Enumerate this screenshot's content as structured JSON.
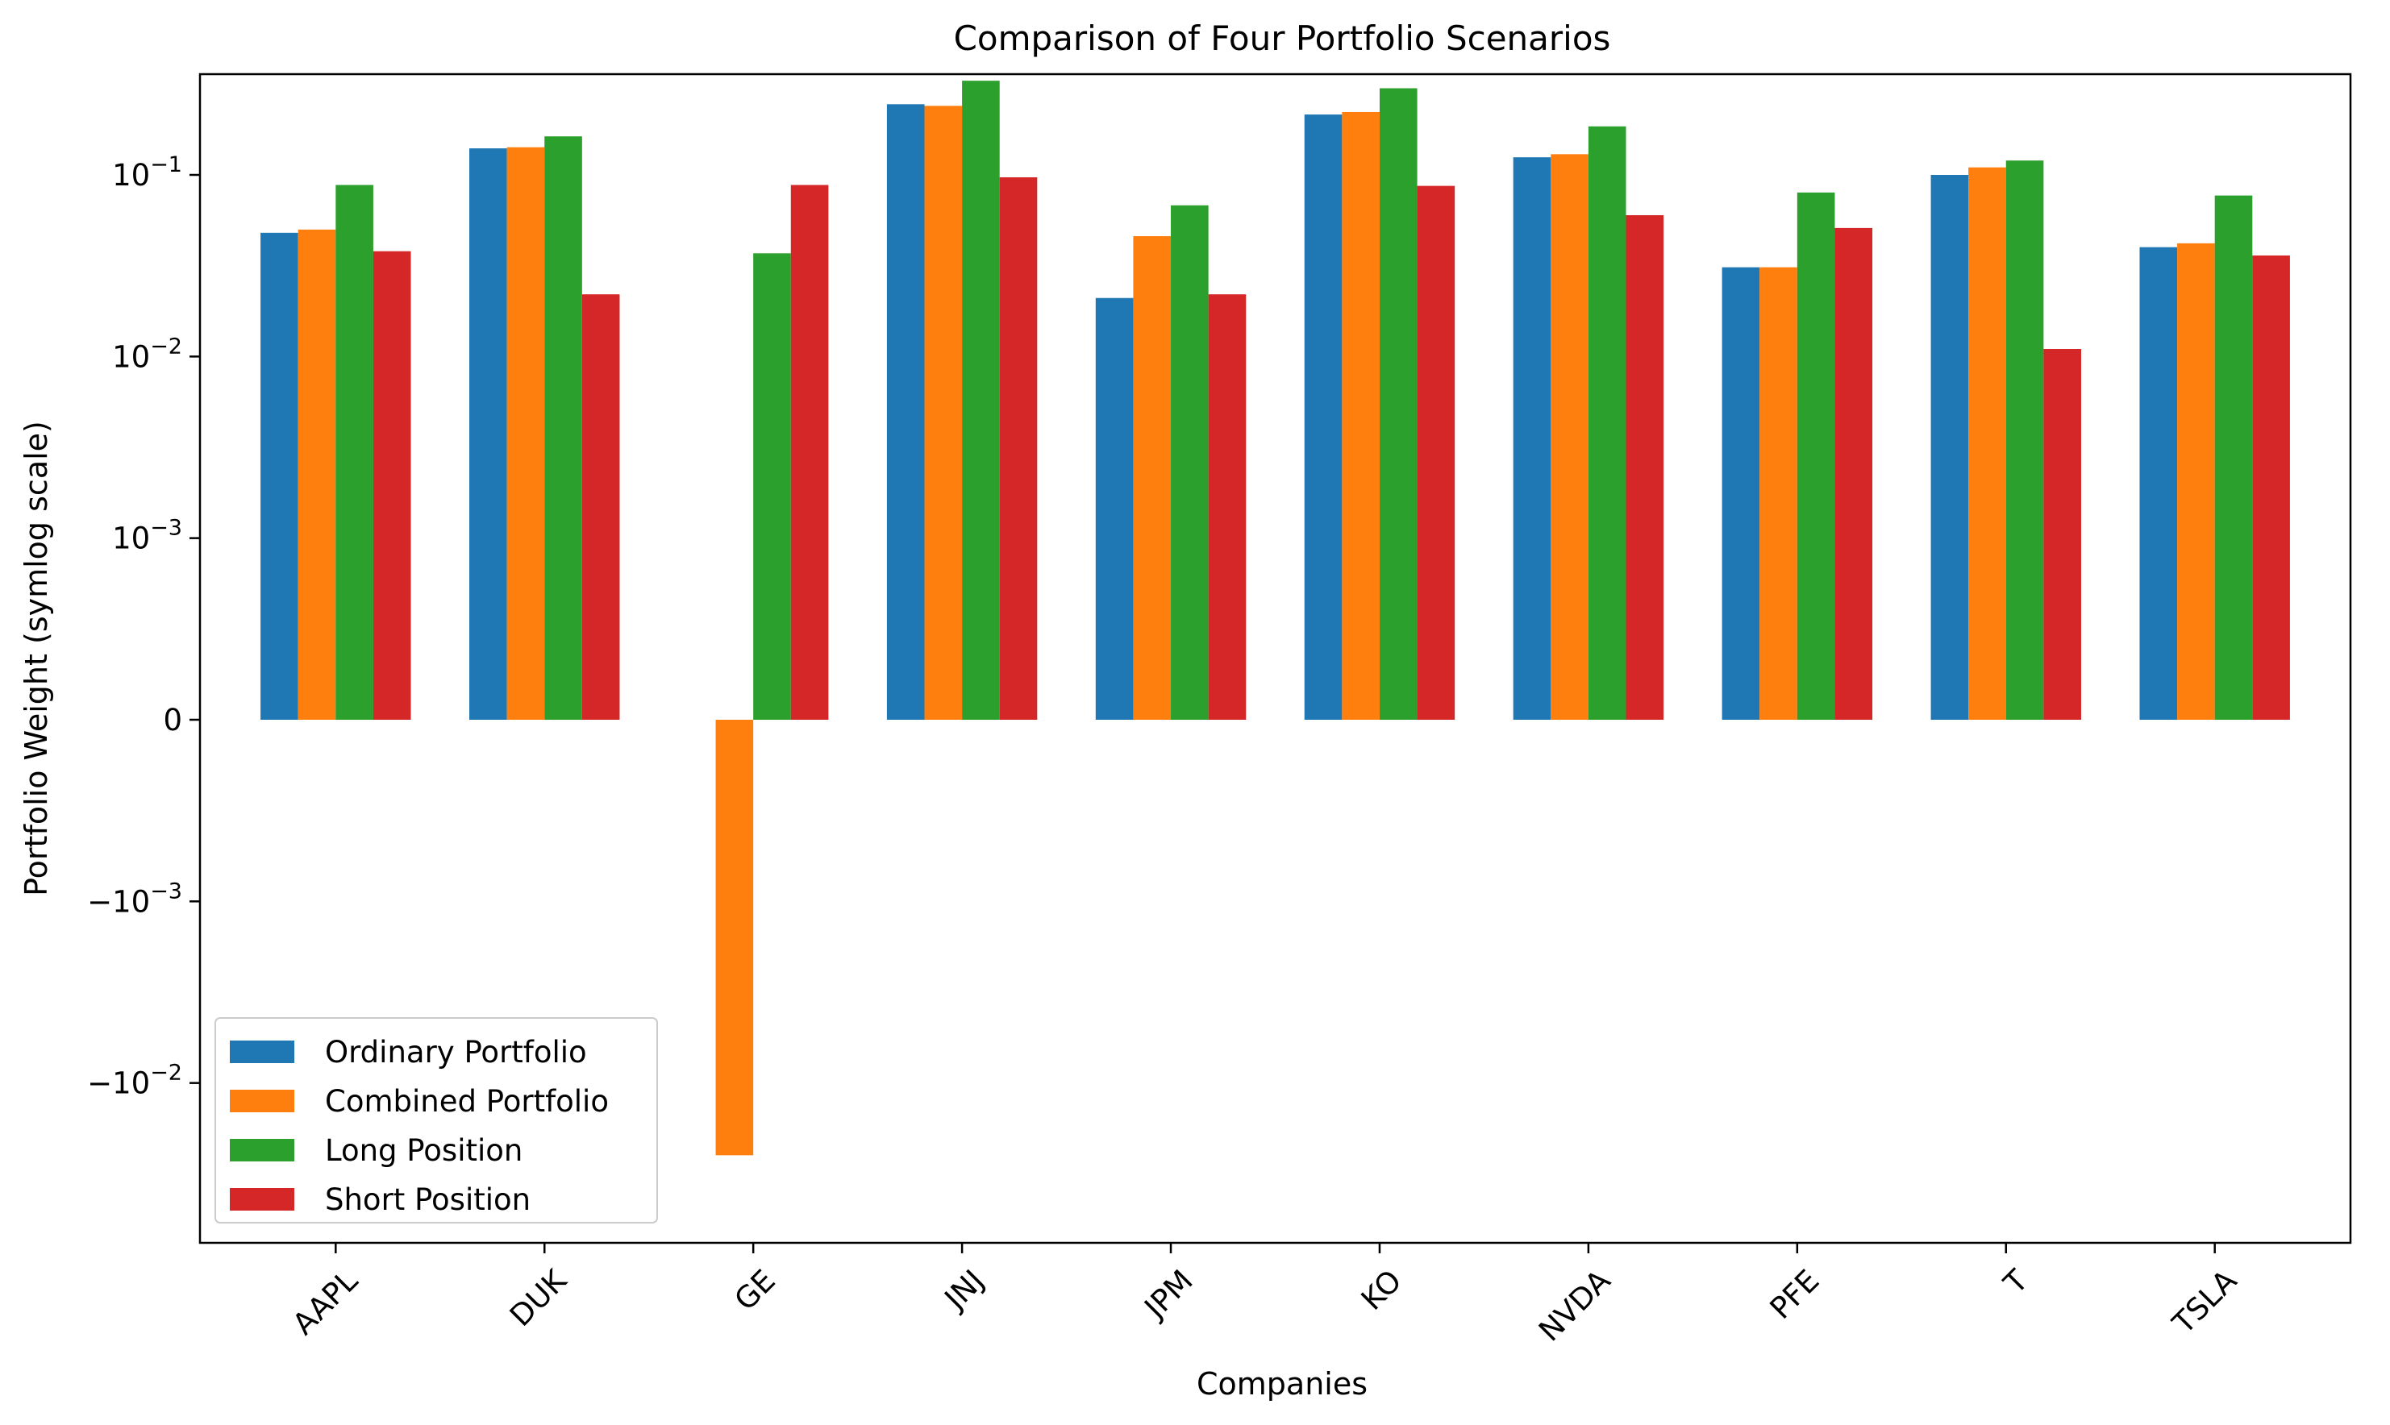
{
  "chart_data": {
    "type": "bar",
    "title": "Comparison of Four Portfolio Scenarios",
    "xlabel": "Companies",
    "ylabel": "Portfolio Weight (symlog scale)",
    "yscale": "symlog",
    "linthresh": 0.001,
    "ylim": [
      -0.025,
      0.35
    ],
    "yticks": [
      {
        "value": 0.1,
        "label": "10",
        "exp": "−1"
      },
      {
        "value": 0.01,
        "label": "10",
        "exp": "−2"
      },
      {
        "value": 0.001,
        "label": "10",
        "exp": "−3"
      },
      {
        "value": 0,
        "label": "0",
        "exp": ""
      },
      {
        "value": -0.001,
        "label": "−10",
        "exp": "−3"
      },
      {
        "value": -0.01,
        "label": "−10",
        "exp": "−2"
      }
    ],
    "grid": false,
    "legend_position": "lower-left",
    "categories": [
      "AAPL",
      "DUK",
      "GE",
      "JNJ",
      "JPM",
      "KO",
      "NVDA",
      "PFE",
      "T",
      "TSLA"
    ],
    "series": [
      {
        "name": "Ordinary Portfolio",
        "color": "#1f77b4",
        "values": [
          0.048,
          0.14,
          0.0,
          0.245,
          0.021,
          0.215,
          0.125,
          0.031,
          0.1,
          0.04
        ]
      },
      {
        "name": "Combined Portfolio",
        "color": "#ff7f0e",
        "values": [
          0.05,
          0.142,
          -0.025,
          0.24,
          0.046,
          0.222,
          0.13,
          0.031,
          0.11,
          0.042
        ]
      },
      {
        "name": "Long Position",
        "color": "#2ca02c",
        "values": [
          0.088,
          0.163,
          0.037,
          0.33,
          0.068,
          0.3,
          0.185,
          0.08,
          0.12,
          0.077
        ]
      },
      {
        "name": "Short Position",
        "color": "#d62728",
        "values": [
          0.038,
          0.022,
          0.088,
          0.097,
          0.022,
          0.087,
          0.06,
          0.051,
          0.011,
          0.036
        ]
      }
    ]
  }
}
